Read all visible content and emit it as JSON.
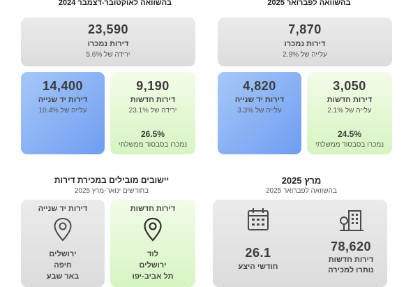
{
  "left_top": {
    "header": "בהשוואה לאוקטובר-דצמבר 2024",
    "summary": {
      "value": "23,590",
      "label": "דירות נמכרו",
      "change": "ירידה של 5.6%"
    },
    "second_hand": {
      "value": "14,400",
      "label": "דירות יד שנייה",
      "change": "עלייה של 10.4%"
    },
    "new": {
      "value": "9,190",
      "label": "דירות חדשות",
      "change": "ירידה של 23.1%",
      "pct": "26.5%",
      "pct_label": "נמכרו בסבסוד ממשלתי"
    }
  },
  "right_top": {
    "header": "בהשוואה לפברואר 2025",
    "summary": {
      "value": "7,870",
      "label": "דירות נמכרו",
      "change": "עלייה של 2.9%"
    },
    "second_hand": {
      "value": "4,820",
      "label": "דירות יד שנייה",
      "change": "עלייה של 3.3%"
    },
    "new": {
      "value": "3,050",
      "label": "דירות חדשות",
      "change": "עלייה של 2.1%",
      "pct": "24.5%",
      "pct_label": "נמכרו בסבסוד ממשלתי"
    }
  },
  "leading": {
    "title": "יישובים מובילים במכירת דירות",
    "subtitle": "בחודשים ינואר-מרץ 2025",
    "second_hand": {
      "label": "דירות יד שנייה",
      "cities": [
        "ירושלים",
        "חיפה",
        "באר שבע"
      ]
    },
    "new": {
      "label": "דירות חדשות",
      "cities": [
        "לוד",
        "ירושלים",
        "תל אביב-יפו"
      ]
    }
  },
  "march": {
    "title": "מרץ 2025",
    "subtitle": "בהשוואה לפברואר 2025",
    "supply": {
      "value": "26.1",
      "label": "חודשי היצע"
    },
    "unsold": {
      "value": "78,620",
      "label": "דירות חדשות",
      "label2": "נותרו למכירה"
    }
  },
  "icons": {
    "pin": "map-pin-icon",
    "calendar": "calendar-icon",
    "buildings": "buildings-icon"
  },
  "colors": {
    "grey": "#e2e2e2",
    "green": "#dff7cf",
    "blue": "#7fa9f3"
  }
}
